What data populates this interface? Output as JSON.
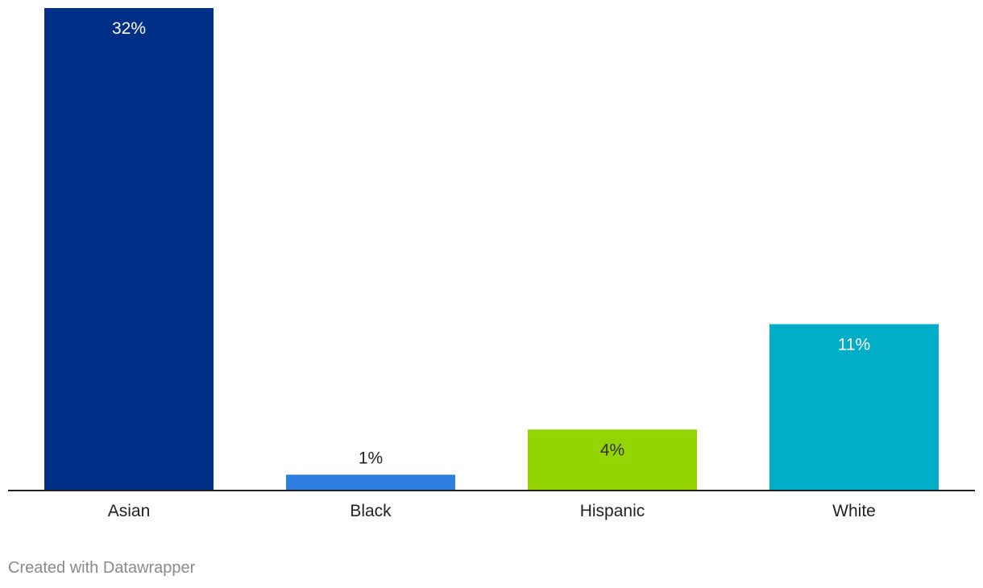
{
  "chart_data": {
    "type": "bar",
    "categories": [
      "Asian",
      "Black",
      "Hispanic",
      "White"
    ],
    "values": [
      32,
      1,
      4,
      11
    ],
    "value_labels": [
      "32%",
      "1%",
      "4%",
      "11%"
    ],
    "colors": [
      "#002f87",
      "#2f7fe0",
      "#94d400",
      "#00aec7"
    ],
    "label_colors": [
      "#ffffff",
      "#222222",
      "#333333",
      "#ffffff"
    ],
    "title": "",
    "xlabel": "",
    "ylabel": "",
    "ylim": [
      0,
      32
    ],
    "grid": false,
    "legend": "none"
  },
  "footer": {
    "credit": "Created with Datawrapper"
  }
}
